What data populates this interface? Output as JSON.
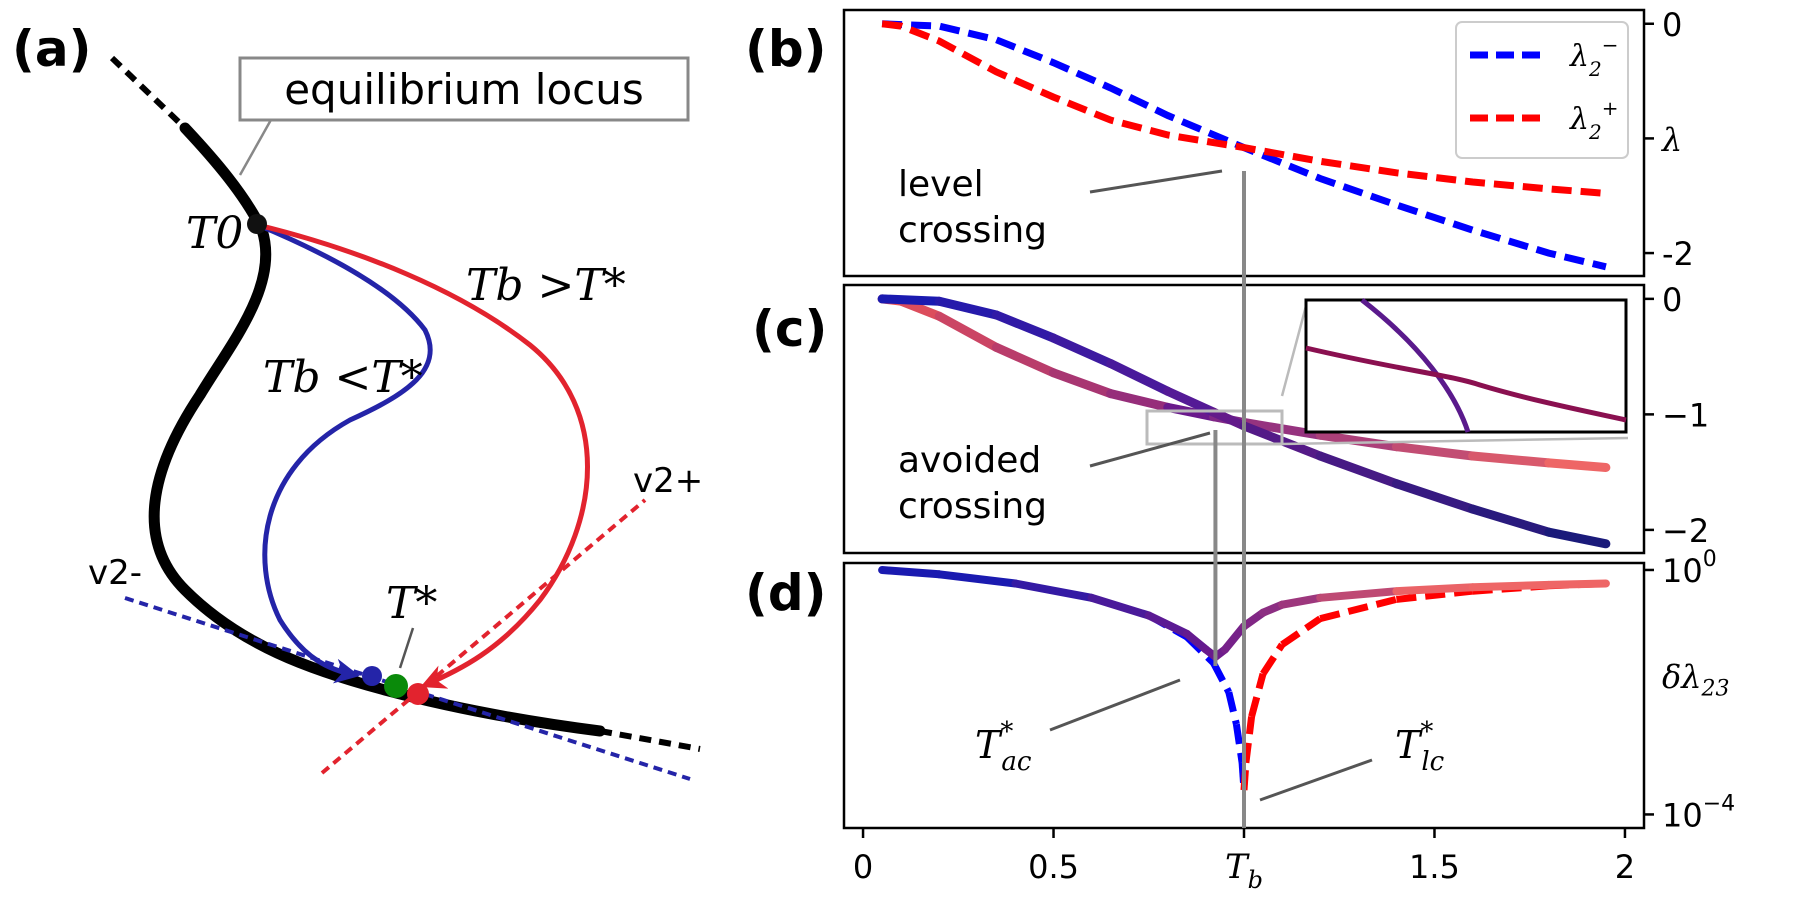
{
  "panel_labels": [
    "(a)",
    "(b)",
    "(c)",
    "(d)"
  ],
  "schematic": {
    "locus_label": "equilibrium locus",
    "t0_label": "T0",
    "tstar_label": "T*",
    "tb_greater_label": "Tb >T*",
    "tb_less_label": "Tb <T*",
    "v2_minus_label": "v2-",
    "v2_plus_label": "v2+",
    "colors": {
      "locus": "#000000",
      "blue": "#2424a8",
      "red": "#e2232e",
      "green": "#0a8a0a"
    }
  },
  "chart_data": [
    {
      "panel": "(b)",
      "type": "line",
      "ylabel": "λ",
      "yticks": [
        "0",
        "λ",
        "-2"
      ],
      "ytick_values": [
        0,
        -1,
        -2
      ],
      "ylim": [
        -2.2,
        0.12
      ],
      "xlim": [
        -0.05,
        2.05
      ],
      "legend": "top-right",
      "annotation": [
        "level",
        "crossing"
      ],
      "series": [
        {
          "name": "λ2−",
          "color": "#0000ff",
          "style": "dashed",
          "x": [
            0.05,
            0.2,
            0.35,
            0.5,
            0.65,
            0.8,
            1.0,
            1.2,
            1.4,
            1.6,
            1.8,
            1.95
          ],
          "y": [
            0.0,
            -0.02,
            -0.14,
            -0.34,
            -0.56,
            -0.8,
            -1.08,
            -1.35,
            -1.58,
            -1.8,
            -2.0,
            -2.12
          ]
        },
        {
          "name": "λ2+",
          "color": "#ff0000",
          "style": "dashed",
          "x": [
            0.05,
            0.1,
            0.2,
            0.35,
            0.5,
            0.65,
            0.8,
            1.0,
            1.2,
            1.4,
            1.6,
            1.8,
            1.95
          ],
          "y": [
            0.0,
            -0.02,
            -0.15,
            -0.42,
            -0.64,
            -0.84,
            -0.97,
            -1.08,
            -1.2,
            -1.3,
            -1.38,
            -1.44,
            -1.48
          ]
        }
      ]
    },
    {
      "panel": "(c)",
      "type": "line",
      "yticks": [
        "0",
        "−1",
        "−2"
      ],
      "ytick_values": [
        0,
        -1,
        -2
      ],
      "ylim": [
        -2.2,
        0.12
      ],
      "xlim": [
        -0.05,
        2.05
      ],
      "annotation": [
        "avoided",
        "crossing"
      ],
      "series": [
        {
          "color_start": "#ee5555",
          "color_end": "#ee6666",
          "x": [
            0.05,
            0.1,
            0.2,
            0.35,
            0.5,
            0.65,
            0.8,
            0.92,
            1.0,
            1.2,
            1.4,
            1.6,
            1.8,
            1.95
          ],
          "y": [
            0.0,
            -0.02,
            -0.15,
            -0.42,
            -0.64,
            -0.82,
            -0.94,
            -1.02,
            -1.07,
            -1.18,
            -1.28,
            -1.36,
            -1.42,
            -1.46
          ]
        },
        {
          "color_start": "#1a1ab0",
          "color_end": "#1a1a7a",
          "x": [
            0.05,
            0.2,
            0.35,
            0.5,
            0.65,
            0.8,
            0.92,
            1.0,
            1.2,
            1.4,
            1.6,
            1.8,
            1.95
          ],
          "y": [
            0.0,
            -0.02,
            -0.14,
            -0.34,
            -0.56,
            -0.8,
            -0.98,
            -1.1,
            -1.36,
            -1.6,
            -1.82,
            -2.02,
            -2.12
          ]
        }
      ]
    },
    {
      "panel": "(d)",
      "type": "line",
      "ylabel": "δλ23",
      "yscale": "log",
      "yticks": [
        "10^0",
        "10^-4"
      ],
      "ytick_values": [
        1,
        0.0001
      ],
      "ylim": [
        6e-05,
        1.3
      ],
      "xlim": [
        -0.05,
        2.05
      ],
      "annotations": [
        "T*ac",
        "T*lc"
      ],
      "series": [
        {
          "style": "dashed",
          "color_left": "#0000ff",
          "color_right": "#ff0000",
          "x": [
            0.05,
            0.2,
            0.4,
            0.6,
            0.75,
            0.85,
            0.92,
            0.96,
            0.98,
            0.995,
            1.0,
            1.005,
            1.02,
            1.05,
            1.1,
            1.2,
            1.4,
            1.6,
            1.8,
            1.95
          ],
          "y": [
            1.0,
            0.85,
            0.6,
            0.35,
            0.18,
            0.08,
            0.03,
            0.01,
            0.003,
            0.0007,
            0.00025,
            0.0007,
            0.004,
            0.02,
            0.06,
            0.16,
            0.33,
            0.45,
            0.55,
            0.6
          ]
        },
        {
          "style": "solid",
          "color_left": "#1a1ab0",
          "color_right": "#ee6666",
          "x": [
            0.05,
            0.2,
            0.4,
            0.6,
            0.75,
            0.85,
            0.9,
            0.925,
            0.95,
            1.0,
            1.05,
            1.1,
            1.2,
            1.4,
            1.6,
            1.8,
            1.95
          ],
          "y": [
            1.0,
            0.85,
            0.6,
            0.35,
            0.18,
            0.09,
            0.05,
            0.038,
            0.05,
            0.12,
            0.2,
            0.27,
            0.35,
            0.45,
            0.52,
            0.57,
            0.6
          ]
        }
      ]
    }
  ],
  "shared_x_axis": {
    "ticks": [
      "0",
      "0.5",
      "Tb",
      "1.5",
      "2"
    ],
    "tick_values": [
      0,
      0.5,
      1.0,
      1.5,
      2.0
    ]
  }
}
